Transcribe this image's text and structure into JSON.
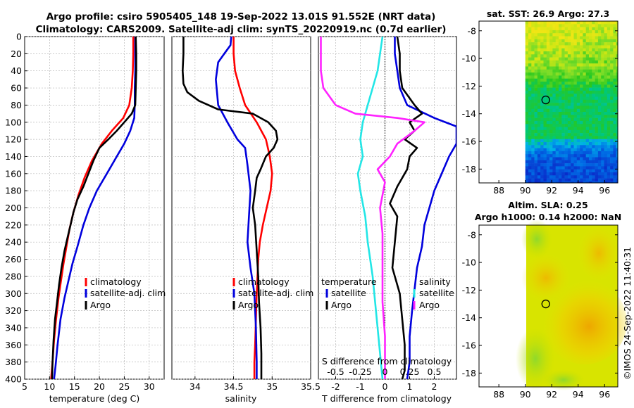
{
  "title": {
    "line1": "Argo profile: csiro 5905405_148 19-Sep-2022 13.01S 91.552E (NRT data)",
    "line2": "Climatology: CARS2009. Satellite-adj clim: synTS_20220919.nc (0.7d earlier)"
  },
  "watermark": "©IMOS 24-Sep-2022 11:40:31",
  "colors": {
    "climatology": "#ff0000",
    "satellite": "#0000dd",
    "argo": "#000000",
    "cyan": "#22e6e6",
    "magenta": "#ff22ff"
  },
  "chart_data": [
    {
      "type": "line",
      "name": "temperature",
      "xlabel": "temperature (deg C)",
      "xlim": [
        5,
        33
      ],
      "ylim": [
        0,
        400
      ],
      "xticks": [
        "5",
        "10",
        "15",
        "20",
        "25",
        "30"
      ],
      "yticks": [
        "0",
        "20",
        "40",
        "60",
        "80",
        "100",
        "120",
        "140",
        "160",
        "180",
        "200",
        "220",
        "240",
        "260",
        "280",
        "300",
        "320",
        "340",
        "360",
        "380",
        "400"
      ],
      "legend": [
        "climatology",
        "satellite-adj. clim",
        "Argo"
      ],
      "series": [
        {
          "name": "climatology",
          "color": "red",
          "points": [
            [
              26.8,
              0
            ],
            [
              26.8,
              20
            ],
            [
              26.7,
              40
            ],
            [
              26.5,
              60
            ],
            [
              26.0,
              80
            ],
            [
              24.8,
              95
            ],
            [
              22.5,
              110
            ],
            [
              20.5,
              125
            ],
            [
              18.5,
              145
            ],
            [
              17.0,
              165
            ],
            [
              15.8,
              185
            ],
            [
              14.8,
              205
            ],
            [
              14.0,
              225
            ],
            [
              13.4,
              245
            ],
            [
              12.8,
              265
            ],
            [
              12.3,
              285
            ],
            [
              11.8,
              305
            ],
            [
              11.3,
              330
            ],
            [
              10.9,
              355
            ],
            [
              10.6,
              380
            ],
            [
              10.3,
              400
            ]
          ]
        },
        {
          "name": "satellite-adj. clim",
          "color": "blue",
          "points": [
            [
              27.2,
              0
            ],
            [
              27.2,
              20
            ],
            [
              27.2,
              40
            ],
            [
              27.1,
              60
            ],
            [
              27.1,
              80
            ],
            [
              27.0,
              95
            ],
            [
              26.2,
              110
            ],
            [
              25.0,
              125
            ],
            [
              23.5,
              140
            ],
            [
              21.5,
              160
            ],
            [
              19.5,
              180
            ],
            [
              18.0,
              200
            ],
            [
              16.8,
              220
            ],
            [
              15.6,
              245
            ],
            [
              14.6,
              265
            ],
            [
              13.8,
              285
            ],
            [
              13.0,
              305
            ],
            [
              12.2,
              330
            ],
            [
              11.6,
              360
            ],
            [
              11.2,
              385
            ],
            [
              10.9,
              400
            ]
          ]
        },
        {
          "name": "Argo",
          "color": "black",
          "points": [
            [
              27.3,
              0
            ],
            [
              27.4,
              20
            ],
            [
              27.4,
              40
            ],
            [
              27.3,
              60
            ],
            [
              27.2,
              80
            ],
            [
              26.5,
              90
            ],
            [
              25.0,
              100
            ],
            [
              23.5,
              110
            ],
            [
              21.8,
              120
            ],
            [
              20.0,
              130
            ],
            [
              18.8,
              145
            ],
            [
              17.8,
              160
            ],
            [
              16.8,
              175
            ],
            [
              15.6,
              190
            ],
            [
              14.8,
              205
            ],
            [
              14.2,
              220
            ],
            [
              13.6,
              235
            ],
            [
              13.0,
              250
            ],
            [
              12.4,
              270
            ],
            [
              11.9,
              290
            ],
            [
              11.5,
              310
            ],
            [
              11.1,
              330
            ],
            [
              10.8,
              355
            ],
            [
              10.6,
              380
            ],
            [
              10.5,
              400
            ]
          ]
        }
      ]
    },
    {
      "type": "line",
      "name": "salinity",
      "xlabel": "salinity",
      "xlim": [
        33.7,
        35.5
      ],
      "ylim": [
        0,
        400
      ],
      "xticks": [
        "34",
        "34.5",
        "35",
        "35.5"
      ],
      "legend": [
        "climatology",
        "satellite-adj. clim",
        "Argo"
      ],
      "series": [
        {
          "name": "climatology",
          "color": "red",
          "points": [
            [
              34.5,
              0
            ],
            [
              34.5,
              20
            ],
            [
              34.52,
              40
            ],
            [
              34.58,
              60
            ],
            [
              34.65,
              80
            ],
            [
              34.8,
              100
            ],
            [
              34.92,
              120
            ],
            [
              34.97,
              140
            ],
            [
              35.0,
              160
            ],
            [
              34.98,
              180
            ],
            [
              34.93,
              200
            ],
            [
              34.88,
              220
            ],
            [
              34.84,
              240
            ],
            [
              34.82,
              260
            ],
            [
              34.81,
              280
            ],
            [
              34.8,
              300
            ],
            [
              34.79,
              330
            ],
            [
              34.78,
              360
            ],
            [
              34.77,
              380
            ],
            [
              34.77,
              400
            ]
          ]
        },
        {
          "name": "satellite-adj. clim",
          "color": "blue",
          "points": [
            [
              34.47,
              0
            ],
            [
              34.46,
              10
            ],
            [
              34.38,
              20
            ],
            [
              34.3,
              30
            ],
            [
              34.27,
              50
            ],
            [
              34.3,
              80
            ],
            [
              34.42,
              100
            ],
            [
              34.55,
              120
            ],
            [
              34.65,
              130
            ],
            [
              34.68,
              150
            ],
            [
              34.72,
              180
            ],
            [
              34.7,
              210
            ],
            [
              34.68,
              240
            ],
            [
              34.72,
              270
            ],
            [
              34.77,
              300
            ],
            [
              34.79,
              340
            ],
            [
              34.8,
              380
            ],
            [
              34.8,
              400
            ]
          ]
        },
        {
          "name": "Argo",
          "color": "black",
          "points": [
            [
              33.85,
              0
            ],
            [
              33.85,
              20
            ],
            [
              33.84,
              40
            ],
            [
              33.85,
              55
            ],
            [
              33.9,
              65
            ],
            [
              34.05,
              75
            ],
            [
              34.3,
              85
            ],
            [
              34.75,
              90
            ],
            [
              34.95,
              100
            ],
            [
              35.05,
              110
            ],
            [
              35.07,
              120
            ],
            [
              35.02,
              130
            ],
            [
              34.92,
              140
            ],
            [
              34.85,
              155
            ],
            [
              34.8,
              165
            ],
            [
              34.78,
              180
            ],
            [
              34.75,
              200
            ],
            [
              34.78,
              220
            ],
            [
              34.8,
              250
            ],
            [
              34.82,
              280
            ],
            [
              34.83,
              310
            ],
            [
              34.85,
              340
            ],
            [
              34.86,
              370
            ],
            [
              34.86,
              400
            ]
          ]
        }
      ]
    },
    {
      "type": "line",
      "name": "differences",
      "xlabel": "T difference from climatology",
      "xlabel_top": "S difference from climatology",
      "xlim": [
        -2.7,
        2.9
      ],
      "ylim": [
        0,
        400
      ],
      "xticks": [
        "-2",
        "-1",
        "0",
        "1",
        "2"
      ],
      "xticks_s": [
        "-0.5",
        "-0.25",
        "0",
        "0.25",
        "0.5"
      ],
      "legend": {
        "temperature_header": "temperature",
        "salinity_header": "salinity",
        "t_items": [
          "satellite",
          "Argo"
        ],
        "s_items": [
          "satellite",
          "Argo"
        ]
      },
      "series": [
        {
          "name": "T satellite",
          "color": "blue",
          "points": [
            [
              0.4,
              0
            ],
            [
              0.4,
              20
            ],
            [
              0.5,
              40
            ],
            [
              0.6,
              60
            ],
            [
              0.9,
              80
            ],
            [
              2.0,
              95
            ],
            [
              2.9,
              105
            ],
            [
              2.9,
              125
            ],
            [
              2.6,
              140
            ],
            [
              2.3,
              160
            ],
            [
              2.0,
              180
            ],
            [
              1.8,
              200
            ],
            [
              1.6,
              220
            ],
            [
              1.5,
              245
            ],
            [
              1.3,
              270
            ],
            [
              1.2,
              295
            ],
            [
              1.1,
              320
            ],
            [
              1.0,
              350
            ],
            [
              1.0,
              380
            ],
            [
              0.9,
              400
            ]
          ]
        },
        {
          "name": "T Argo",
          "color": "black",
          "points": [
            [
              0.5,
              0
            ],
            [
              0.6,
              20
            ],
            [
              0.6,
              40
            ],
            [
              0.7,
              60
            ],
            [
              1.2,
              80
            ],
            [
              1.5,
              90
            ],
            [
              1.0,
              100
            ],
            [
              1.2,
              110
            ],
            [
              0.8,
              120
            ],
            [
              1.3,
              130
            ],
            [
              1.0,
              140
            ],
            [
              0.9,
              155
            ],
            [
              0.5,
              175
            ],
            [
              0.2,
              195
            ],
            [
              0.5,
              210
            ],
            [
              0.4,
              240
            ],
            [
              0.3,
              270
            ],
            [
              0.6,
              300
            ],
            [
              0.7,
              330
            ],
            [
              0.8,
              360
            ],
            [
              0.8,
              390
            ],
            [
              0.7,
              400
            ]
          ]
        },
        {
          "name": "S satellite",
          "color": "cyan",
          "points": [
            [
              -0.1,
              0
            ],
            [
              -0.2,
              20
            ],
            [
              -0.3,
              40
            ],
            [
              -0.5,
              60
            ],
            [
              -0.7,
              80
            ],
            [
              -0.9,
              100
            ],
            [
              -1.0,
              120
            ],
            [
              -0.9,
              140
            ],
            [
              -1.1,
              160
            ],
            [
              -1.0,
              180
            ],
            [
              -0.8,
              210
            ],
            [
              -0.7,
              240
            ],
            [
              -0.5,
              280
            ],
            [
              -0.4,
              310
            ],
            [
              -0.3,
              340
            ],
            [
              -0.2,
              370
            ],
            [
              -0.1,
              400
            ]
          ]
        },
        {
          "name": "S Argo",
          "color": "magenta",
          "points": [
            [
              -2.6,
              0
            ],
            [
              -2.6,
              20
            ],
            [
              -2.6,
              40
            ],
            [
              -2.5,
              60
            ],
            [
              -2.0,
              80
            ],
            [
              -1.2,
              90
            ],
            [
              0.5,
              95
            ],
            [
              1.6,
              100
            ],
            [
              1.2,
              110
            ],
            [
              0.5,
              125
            ],
            [
              0.2,
              140
            ],
            [
              -0.3,
              155
            ],
            [
              0.0,
              170
            ],
            [
              -0.1,
              185
            ],
            [
              -0.2,
              200
            ],
            [
              -0.1,
              230
            ],
            [
              -0.1,
              270
            ],
            [
              -0.1,
              310
            ],
            [
              0.0,
              350
            ],
            [
              0.0,
              400
            ]
          ]
        }
      ]
    },
    {
      "type": "heatmap",
      "name": "sst-map",
      "title": "sat. SST: 26.9 Argo: 27.3",
      "xlim": [
        86.5,
        97
      ],
      "ylim": [
        -19,
        -7.3
      ],
      "xticks": [
        "88",
        "90",
        "92",
        "94",
        "96"
      ],
      "yticks": [
        "-8",
        "-10",
        "-12",
        "-14",
        "-16",
        "-18"
      ],
      "marker": {
        "lon": 91.55,
        "lat": -13.0
      }
    },
    {
      "type": "heatmap",
      "name": "sla-map",
      "title_line1": "Altim. SLA: 0.25",
      "title_line2": "Argo h1000: 0.14 h2000: NaN",
      "xlim": [
        86.5,
        97
      ],
      "ylim": [
        -19,
        -7.3
      ],
      "xticks": [
        "88",
        "90",
        "92",
        "94",
        "96"
      ],
      "yticks": [
        "-8",
        "-10",
        "-12",
        "-14",
        "-16",
        "-18"
      ],
      "marker": {
        "lon": 91.55,
        "lat": -13.0
      }
    }
  ]
}
